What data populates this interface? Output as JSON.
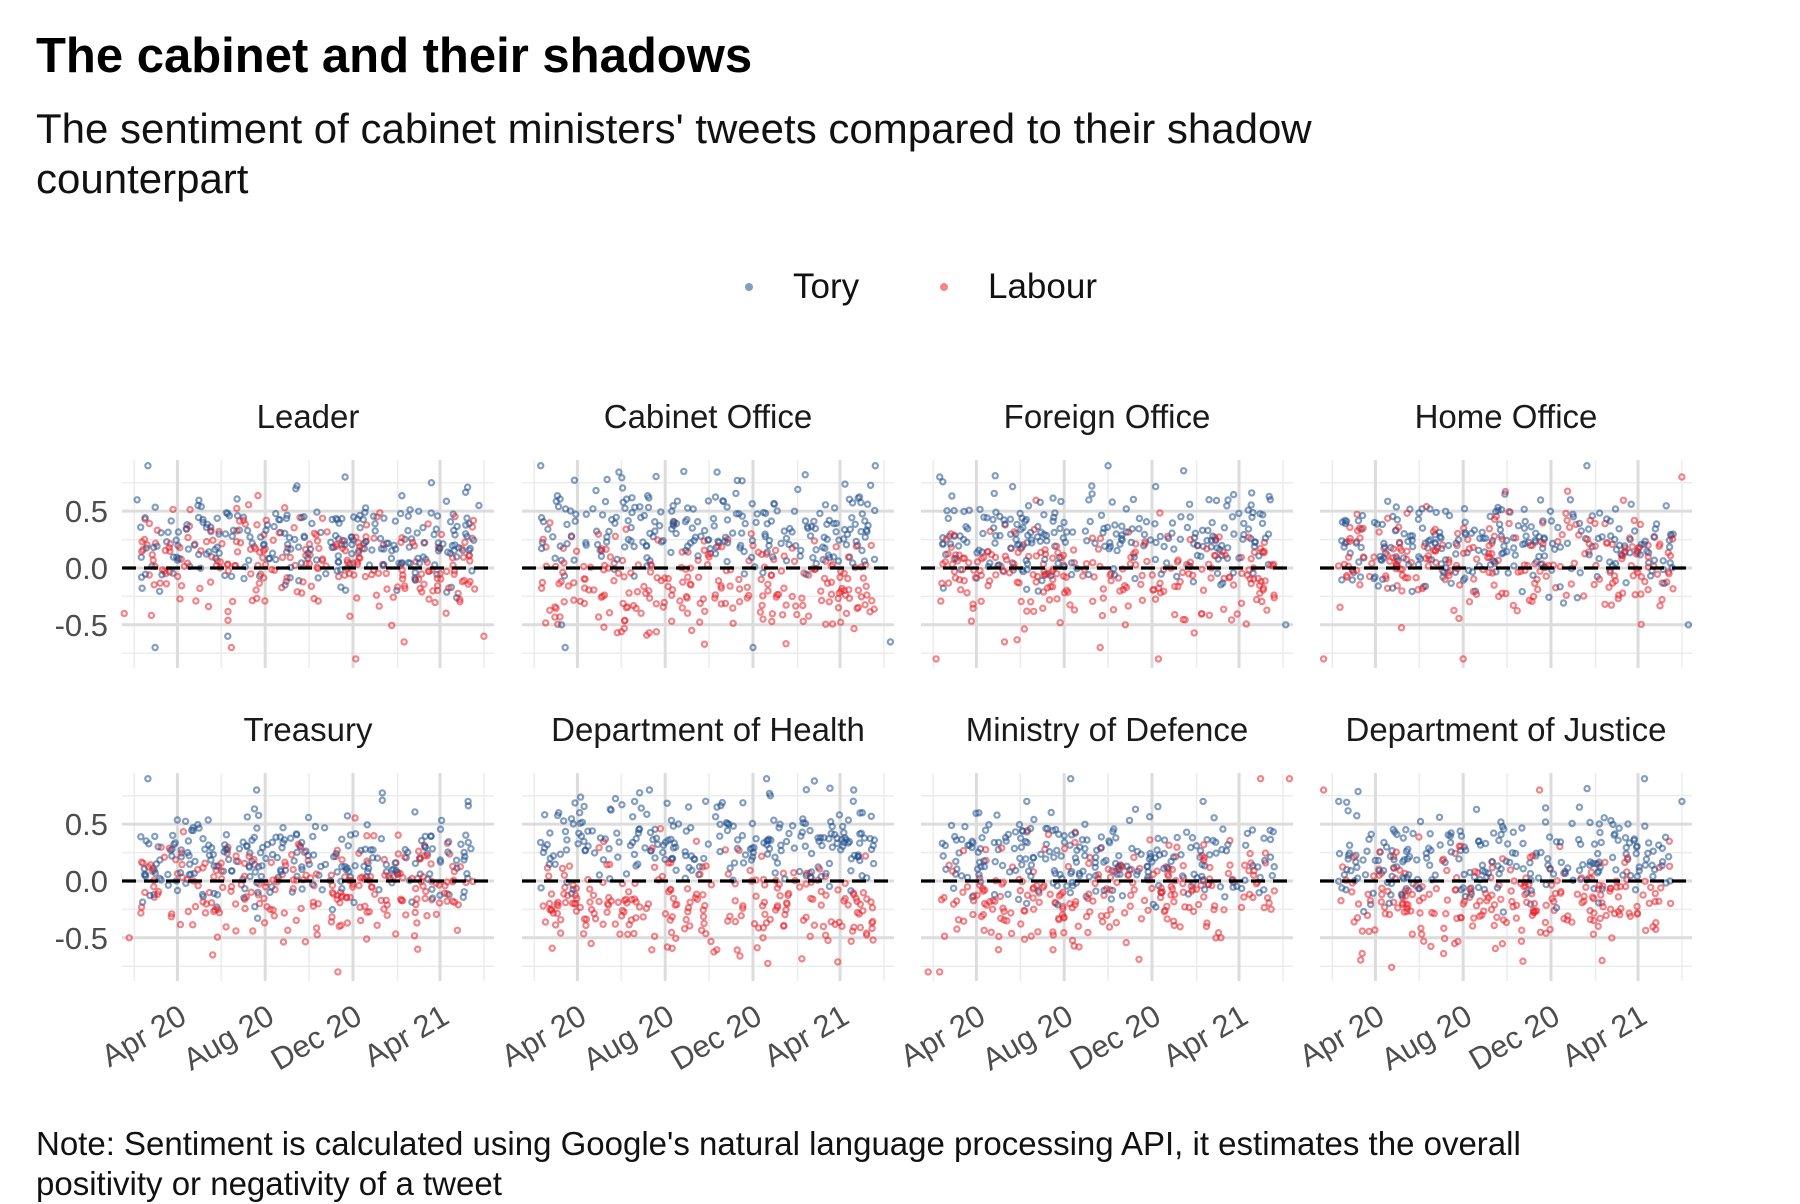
{
  "title": "The cabinet and their shadows",
  "subtitle": "The sentiment of cabinet ministers' tweets compared to their shadow counterpart",
  "note": "Note: Sentiment is calculated using Google's natural language processing API, it estimates the overall positivity or negativity of a tweet",
  "legend": [
    {
      "name": "Tory",
      "color": "#1f4e8c"
    },
    {
      "name": "Labour",
      "color": "#e8202a"
    }
  ],
  "chart_data": {
    "type": "scatter",
    "facet_layout": {
      "rows": 2,
      "cols": 4
    },
    "x_range": [
      "2020-01-15",
      "2021-06-15"
    ],
    "x_ticks": [
      {
        "date": "2020-04-01",
        "label": "Apr 20"
      },
      {
        "date": "2020-08-01",
        "label": "Aug 20"
      },
      {
        "date": "2020-12-01",
        "label": "Dec 20"
      },
      {
        "date": "2021-04-01",
        "label": "Apr 21"
      }
    ],
    "ylim": [
      -0.88,
      0.95
    ],
    "y_ticks": [
      {
        "value": 0.5,
        "label": "0.5"
      },
      {
        "value": 0.0,
        "label": "0.0"
      },
      {
        "value": -0.5,
        "label": "-0.5"
      }
    ],
    "reference_line": {
      "y": 0,
      "style": "dashed",
      "color": "#000000"
    },
    "grid": true,
    "legend_position": "top",
    "panels": [
      {
        "name": "Leader",
        "tory_mean": 0.25,
        "labour_mean": 0.05,
        "tory_sample": [
          [
            "2020-02-05",
            0.6
          ],
          [
            "2020-02-20",
            0.9
          ],
          [
            "2020-03-01",
            -0.7
          ],
          [
            "2020-06-10",
            -0.6
          ],
          [
            "2020-11-20",
            0.8
          ],
          [
            "2021-03-20",
            0.75
          ],
          [
            "2021-05-25",
            0.55
          ]
        ],
        "labour_sample": [
          [
            "2020-01-18",
            -0.4
          ],
          [
            "2020-06-15",
            -0.7
          ],
          [
            "2020-12-05",
            -0.8
          ],
          [
            "2021-02-10",
            -0.65
          ],
          [
            "2021-06-01",
            -0.6
          ]
        ]
      },
      {
        "name": "Cabinet Office",
        "tory_mean": 0.35,
        "labour_mean": -0.15,
        "tory_sample": [
          [
            "2020-02-10",
            0.9
          ],
          [
            "2020-03-10",
            -0.5
          ],
          [
            "2020-03-15",
            -0.7
          ],
          [
            "2020-12-01",
            -0.7
          ],
          [
            "2021-05-20",
            0.9
          ],
          [
            "2021-06-10",
            -0.65
          ]
        ],
        "labour_sample": [
          [
            "2020-12-15",
            -0.45
          ],
          [
            "2021-04-10",
            -0.4
          ]
        ]
      },
      {
        "name": "Foreign Office",
        "tory_mean": 0.3,
        "labour_mean": -0.05,
        "tory_sample": [
          [
            "2020-02-10",
            0.8
          ],
          [
            "2020-10-01",
            0.9
          ],
          [
            "2021-06-05",
            -0.5
          ]
        ],
        "labour_sample": [
          [
            "2020-02-05",
            -0.8
          ],
          [
            "2020-05-10",
            -0.65
          ],
          [
            "2020-09-20",
            -0.7
          ],
          [
            "2020-12-10",
            -0.8
          ]
        ]
      },
      {
        "name": "Home Office",
        "tory_mean": 0.2,
        "labour_mean": 0.05,
        "tory_sample": [
          [
            "2021-01-20",
            0.9
          ],
          [
            "2021-06-10",
            -0.5
          ]
        ],
        "labour_sample": [
          [
            "2020-01-20",
            -0.8
          ],
          [
            "2020-08-01",
            -0.8
          ],
          [
            "2021-06-01",
            0.8
          ]
        ]
      },
      {
        "name": "Treasury",
        "tory_mean": 0.2,
        "labour_mean": -0.05,
        "tory_sample": [
          [
            "2020-02-20",
            0.9
          ],
          [
            "2020-07-20",
            0.8
          ],
          [
            "2021-05-10",
            0.7
          ]
        ],
        "labour_sample": [
          [
            "2020-01-25",
            -0.5
          ],
          [
            "2020-05-20",
            -0.65
          ],
          [
            "2020-11-10",
            -0.8
          ],
          [
            "2021-03-01",
            -0.6
          ]
        ]
      },
      {
        "name": "Department of Health",
        "tory_mean": 0.35,
        "labour_mean": -0.2,
        "tory_sample": [
          [
            "2020-07-10",
            0.8
          ],
          [
            "2020-12-20",
            0.9
          ],
          [
            "2021-04-20",
            0.8
          ]
        ],
        "labour_sample": [
          [
            "2020-04-20",
            -0.55
          ],
          [
            "2020-12-15",
            -0.5
          ]
        ]
      },
      {
        "name": "Ministry of Defence",
        "tory_mean": 0.2,
        "labour_mean": -0.1,
        "tory_sample": [
          [
            "2020-06-10",
            0.7
          ],
          [
            "2020-08-10",
            0.9
          ],
          [
            "2021-02-10",
            0.7
          ]
        ],
        "labour_sample": [
          [
            "2020-01-25",
            -0.8
          ],
          [
            "2020-02-10",
            -0.8
          ],
          [
            "2021-05-01",
            0.9
          ],
          [
            "2021-06-10",
            0.9
          ]
        ]
      },
      {
        "name": "Department of Justice",
        "tory_mean": 0.2,
        "labour_mean": -0.15,
        "tory_sample": [
          [
            "2020-02-10",
            0.7
          ],
          [
            "2021-04-10",
            0.9
          ],
          [
            "2021-06-01",
            0.7
          ]
        ],
        "labour_sample": [
          [
            "2020-01-20",
            0.8
          ],
          [
            "2020-07-20",
            -0.55
          ],
          [
            "2020-11-15",
            0.8
          ],
          [
            "2021-02-10",
            -0.7
          ]
        ]
      }
    ]
  }
}
